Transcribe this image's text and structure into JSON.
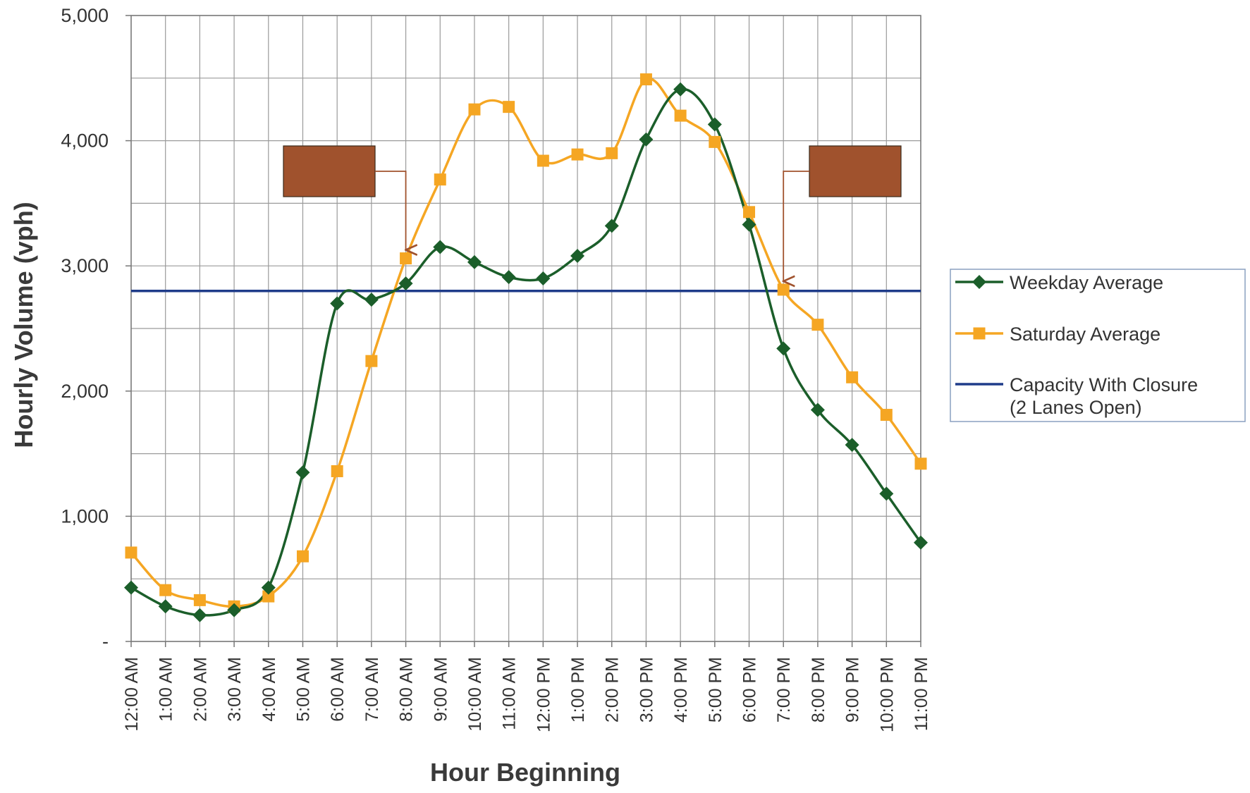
{
  "chart_data": {
    "type": "line",
    "xlabel": "Hour Beginning",
    "ylabel": "Hourly Volume (vph)",
    "ylim": [
      0,
      5000
    ],
    "y_ticks": [
      {
        "value": 0,
        "label": "-"
      },
      {
        "value": 1000,
        "label": "1,000"
      },
      {
        "value": 2000,
        "label": "2,000"
      },
      {
        "value": 3000,
        "label": "3,000"
      },
      {
        "value": 4000,
        "label": "4,000"
      },
      {
        "value": 5000,
        "label": "5,000"
      }
    ],
    "categories": [
      "12:00 AM",
      "1:00 AM",
      "2:00 AM",
      "3:00 AM",
      "4:00 AM",
      "5:00 AM",
      "6:00 AM",
      "7:00 AM",
      "8:00 AM",
      "9:00 AM",
      "10:00 AM",
      "11:00 AM",
      "12:00 PM",
      "1:00 PM",
      "2:00 PM",
      "3:00 PM",
      "4:00 PM",
      "5:00 PM",
      "6:00 PM",
      "7:00 PM",
      "8:00 PM",
      "9:00 PM",
      "10:00 PM",
      "11:00 PM"
    ],
    "grid": true,
    "series": [
      {
        "name": "Weekday Average",
        "marker": "diamond",
        "color": "#1b5e2a",
        "values": [
          430,
          280,
          210,
          250,
          430,
          1350,
          2700,
          2730,
          2860,
          3150,
          3030,
          2910,
          2900,
          3080,
          3320,
          4010,
          4410,
          4130,
          3330,
          2340,
          1850,
          1570,
          1180,
          790
        ]
      },
      {
        "name": "Saturday Average",
        "marker": "square",
        "color": "#f5a623",
        "values": [
          710,
          410,
          330,
          280,
          360,
          680,
          1360,
          2240,
          3060,
          3690,
          4250,
          4270,
          3840,
          3890,
          3900,
          4490,
          4200,
          3990,
          3430,
          2810,
          2530,
          2110,
          1810,
          1420
        ]
      },
      {
        "name": "Capacity With Closure (2 Lanes Open)",
        "marker": "none",
        "color": "#1f3c8a",
        "value": 2800,
        "legend_lines": [
          "Capacity With Closure",
          "(2 Lanes Open)"
        ]
      }
    ],
    "annotations": [
      {
        "type": "callout-box",
        "text": "",
        "points_to": "8:00 AM",
        "color": "#a0522d"
      },
      {
        "type": "callout-box",
        "text": "",
        "points_to": "7:00 PM",
        "color": "#a0522d"
      }
    ],
    "legend_position": "right"
  }
}
